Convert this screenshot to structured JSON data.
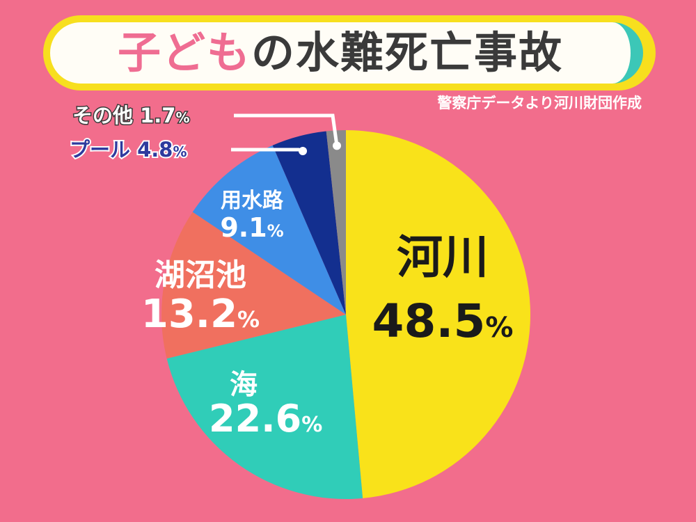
{
  "title": {
    "part1": "子ども",
    "part2": "の水難死亡事故"
  },
  "source": "警察庁データより河川財団作成",
  "colors": {
    "background": "#f26d8c",
    "river": "#f9e21a",
    "sea": "#30cdb8",
    "lake": "#f0705f",
    "canal": "#3f8ee6",
    "pool": "#132f8f",
    "other": "#8a8a8a"
  },
  "chart_data": {
    "type": "pie",
    "title": "子どもの水難死亡事故",
    "unit": "%",
    "slices": [
      {
        "label": "河川",
        "value": 48.5,
        "value_text": "48.5",
        "color": "#f9e21a"
      },
      {
        "label": "海",
        "value": 22.6,
        "value_text": "22.6",
        "color": "#30cdb8"
      },
      {
        "label": "湖沼池",
        "value": 13.2,
        "value_text": "13.2",
        "color": "#f0705f"
      },
      {
        "label": "用水路",
        "value": 9.1,
        "value_text": "9.1",
        "color": "#3f8ee6"
      },
      {
        "label": "プール",
        "value": 4.8,
        "value_text": "4.8",
        "color": "#132f8f"
      },
      {
        "label": "その他",
        "value": 1.7,
        "value_text": "1.7",
        "color": "#8a8a8a"
      }
    ],
    "start": "12 o'clock",
    "direction": "clockwise"
  }
}
